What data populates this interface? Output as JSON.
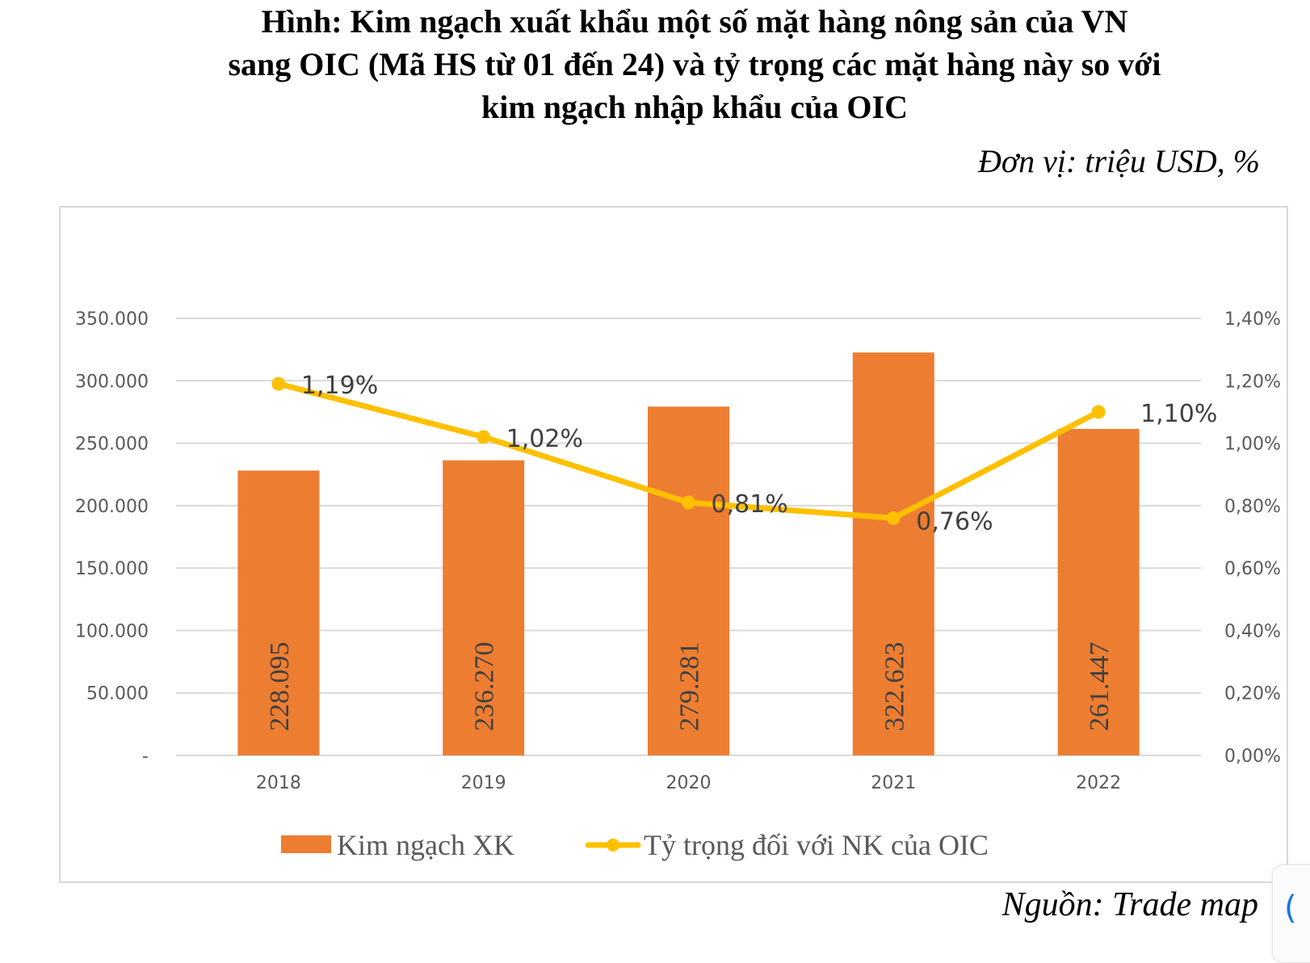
{
  "header": {
    "title_lines": [
      "Hình: Kim ngạch xuất khẩu một số mặt hàng nông sản của VN",
      "sang OIC (Mã HS từ 01 đến 24) và tỷ trọng các mặt hàng này so với",
      "kim ngạch nhập khẩu của OIC"
    ],
    "unit": "Đơn vị: triệu USD, %"
  },
  "footer": {
    "source": "Nguồn: Trade map"
  },
  "widget": {
    "glyph": "("
  },
  "colors": {
    "bar": "#ED7D31",
    "line": "#FFC000",
    "grid": "#d9d9d9",
    "tick_text": "#595959",
    "label_text": "#404040"
  },
  "chart_data": {
    "type": "bar+line",
    "title": "Hình: Kim ngạch xuất khẩu một số mặt hàng nông sản của VN sang OIC (Mã HS từ 01 đến 24) và tỷ trọng các mặt hàng này so với kim ngạch nhập khẩu của OIC",
    "categories": [
      "2018",
      "2019",
      "2020",
      "2021",
      "2022"
    ],
    "series": [
      {
        "name": "Kim ngạch XK",
        "type": "bar",
        "axis": "left",
        "values": [
          228095,
          236270,
          279281,
          322623,
          261447
        ],
        "labels": [
          "228.095",
          "236.270",
          "279.281",
          "322.623",
          "261.447"
        ]
      },
      {
        "name": "Tỷ trọng đối với NK của OIC",
        "type": "line",
        "axis": "right",
        "values": [
          1.19,
          1.02,
          0.81,
          0.76,
          1.1
        ],
        "labels": [
          "1,19%",
          "1,02%",
          "0,81%",
          "0,76%",
          "1,10%"
        ]
      }
    ],
    "y_left": {
      "range": [
        0,
        350000
      ],
      "ticks": [
        0,
        50000,
        100000,
        150000,
        200000,
        250000,
        300000,
        350000
      ],
      "tick_labels": [
        "-",
        "50.000",
        "100.000",
        "150.000",
        "200.000",
        "250.000",
        "300.000",
        "350.000"
      ]
    },
    "y_right": {
      "range": [
        0,
        1.4
      ],
      "ticks": [
        0,
        0.2,
        0.4,
        0.6,
        0.8,
        1.0,
        1.2,
        1.4
      ],
      "tick_labels": [
        "0,00%",
        "0,20%",
        "0,40%",
        "0,60%",
        "0,80%",
        "1,00%",
        "1,20%",
        "1,40%"
      ]
    },
    "grid": true,
    "legend_position": "bottom"
  }
}
